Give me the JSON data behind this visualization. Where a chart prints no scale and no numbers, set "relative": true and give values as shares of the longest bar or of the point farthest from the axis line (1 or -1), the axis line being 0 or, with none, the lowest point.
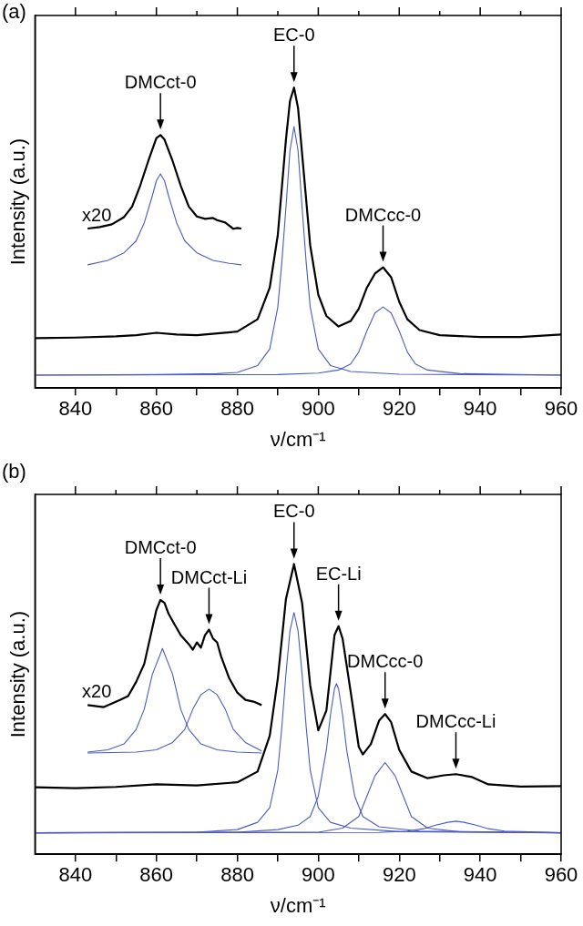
{
  "chart_data": [
    {
      "type": "line",
      "title": "(a)",
      "xlabel": "ν/cm⁻¹",
      "ylabel": "Intensity (a.u.)",
      "relative": true,
      "xlim": [
        830,
        960
      ],
      "xticks": [
        840,
        {
          "value": 850,
          "label": null
        },
        860,
        {
          "value": 870,
          "label": null
        },
        880,
        {
          "value": 890,
          "label": null
        },
        900,
        {
          "value": 910,
          "label": null
        },
        920,
        {
          "value": 930,
          "label": null
        },
        940,
        {
          "value": 950,
          "label": null
        },
        960
      ],
      "grid": false,
      "legend": false,
      "marker": "none",
      "line_style": "solid",
      "series": [
        {
          "color": "#000000",
          "x": [
            830,
            840,
            850,
            855,
            860,
            865,
            870,
            880,
            885,
            888,
            890,
            892,
            893,
            894,
            895,
            896,
            898,
            900,
            902,
            905,
            908,
            910,
            912,
            914,
            916,
            918,
            920,
            922,
            925,
            930,
            940,
            950,
            960
          ],
          "values": [
            0.166,
            0.168,
            0.172,
            0.176,
            0.184,
            0.178,
            0.176,
            0.188,
            0.229,
            0.334,
            0.51,
            0.826,
            0.955,
            1,
            0.932,
            0.78,
            0.475,
            0.311,
            0.24,
            0.205,
            0.223,
            0.264,
            0.334,
            0.381,
            0.402,
            0.369,
            0.287,
            0.229,
            0.193,
            0.176,
            0.17,
            0.17,
            0.178
          ]
        },
        {
          "color": "#4a5bc4",
          "x": [
            830,
            860,
            875,
            880,
            885,
            888,
            890,
            891,
            892,
            893,
            894,
            895,
            896,
            897,
            898,
            900,
            903,
            908,
            920,
            960
          ],
          "values": [
            0.043,
            0.045,
            0.048,
            0.052,
            0.075,
            0.13,
            0.27,
            0.42,
            0.6,
            0.79,
            0.87,
            0.79,
            0.6,
            0.42,
            0.27,
            0.13,
            0.075,
            0.055,
            0.046,
            0.043
          ]
        },
        {
          "color": "#4a5bc4",
          "x": [
            830,
            890,
            900,
            905,
            908,
            910,
            912,
            914,
            916,
            918,
            920,
            922,
            924,
            927,
            935,
            960
          ],
          "values": [
            0.043,
            0.045,
            0.05,
            0.06,
            0.08,
            0.12,
            0.19,
            0.25,
            0.27,
            0.25,
            0.19,
            0.12,
            0.08,
            0.06,
            0.048,
            0.043
          ]
        },
        {
          "color": "#000000",
          "x": [
            843,
            846,
            849,
            852,
            854,
            856,
            858,
            860,
            861,
            862,
            864,
            866,
            868,
            870,
            872,
            874,
            875,
            877,
            879,
            880,
            881
          ],
          "values": [
            0.531,
            0.536,
            0.545,
            0.569,
            0.604,
            0.674,
            0.756,
            0.832,
            0.842,
            0.827,
            0.756,
            0.674,
            0.604,
            0.571,
            0.563,
            0.566,
            0.559,
            0.551,
            0.53,
            0.533,
            0.531
          ]
        },
        {
          "color": "#4a5bc4",
          "x": [
            843,
            848,
            852,
            855,
            857,
            859,
            860,
            861,
            862,
            863,
            865,
            867,
            870,
            874,
            878,
            881
          ],
          "values": [
            0.41,
            0.425,
            0.45,
            0.49,
            0.55,
            0.64,
            0.69,
            0.713,
            0.69,
            0.64,
            0.55,
            0.49,
            0.45,
            0.425,
            0.415,
            0.41
          ]
        }
      ],
      "annotations": [
        {
          "text": "DMCct-0",
          "x": 861,
          "y": 0.842
        },
        {
          "text": "EC-0",
          "x": 894,
          "y": 1
        },
        {
          "text": "DMCcc-0",
          "x": 916,
          "y": 0.402
        },
        "x20"
      ]
    },
    {
      "type": "line",
      "title": "(b)",
      "xlabel": "ν/cm⁻¹",
      "ylabel": "Intensity (a.u.)",
      "relative": true,
      "xlim": [
        830,
        960
      ],
      "xticks": [
        840,
        {
          "value": 850,
          "label": null
        },
        860,
        {
          "value": 870,
          "label": null
        },
        880,
        {
          "value": 890,
          "label": null
        },
        900,
        {
          "value": 910,
          "label": null
        },
        920,
        {
          "value": 930,
          "label": null
        },
        940,
        {
          "value": 950,
          "label": null
        },
        960
      ],
      "grid": false,
      "legend": false,
      "marker": "none",
      "line_style": "solid",
      "series": [
        {
          "color": "#000000",
          "x": [
            830,
            840,
            850,
            860,
            870,
            880,
            885,
            888,
            890,
            892,
            894,
            896,
            898,
            900,
            902,
            904,
            905,
            906,
            908,
            910,
            911,
            913,
            915,
            916.5,
            918,
            920,
            923,
            927,
            931,
            934,
            938,
            942,
            950,
            960
          ],
          "values": [
            0.231,
            0.228,
            0.232,
            0.241,
            0.237,
            0.248,
            0.285,
            0.408,
            0.606,
            0.879,
            1,
            0.866,
            0.582,
            0.427,
            0.495,
            0.755,
            0.786,
            0.743,
            0.56,
            0.37,
            0.344,
            0.38,
            0.46,
            0.483,
            0.455,
            0.36,
            0.285,
            0.262,
            0.272,
            0.276,
            0.266,
            0.241,
            0.233,
            0.235
          ]
        },
        {
          "color": "#4a5bc4",
          "x": [
            830,
            870,
            880,
            885,
            888,
            890,
            891,
            892,
            893,
            894,
            895,
            896,
            897,
            898,
            900,
            903,
            908,
            920,
            960
          ],
          "values": [
            0.074,
            0.076,
            0.085,
            0.11,
            0.16,
            0.29,
            0.44,
            0.62,
            0.77,
            0.833,
            0.77,
            0.62,
            0.44,
            0.29,
            0.16,
            0.11,
            0.09,
            0.078,
            0.074
          ]
        },
        {
          "color": "#4a5bc4",
          "x": [
            830,
            880,
            890,
            895,
            898,
            900,
            902,
            903,
            904,
            904.5,
            905,
            906,
            907,
            909,
            911,
            915,
            925,
            960
          ],
          "values": [
            0.074,
            0.076,
            0.085,
            0.1,
            0.13,
            0.2,
            0.36,
            0.48,
            0.57,
            0.588,
            0.57,
            0.48,
            0.36,
            0.2,
            0.13,
            0.095,
            0.08,
            0.074
          ]
        },
        {
          "color": "#4a5bc4",
          "x": [
            830,
            900,
            906,
            910,
            912,
            914,
            916.5,
            919,
            921,
            923,
            927,
            935,
            960
          ],
          "values": [
            0.074,
            0.076,
            0.09,
            0.13,
            0.2,
            0.27,
            0.316,
            0.27,
            0.2,
            0.13,
            0.09,
            0.077,
            0.074
          ]
        },
        {
          "color": "#4a5bc4",
          "x": [
            830,
            915,
            922,
            926,
            929,
            932,
            934,
            936,
            939,
            942,
            946,
            960
          ],
          "values": [
            0.074,
            0.075,
            0.08,
            0.088,
            0.1,
            0.11,
            0.114,
            0.11,
            0.1,
            0.088,
            0.08,
            0.074
          ]
        },
        {
          "color": "#000000",
          "x": [
            843,
            847,
            851,
            853,
            855,
            857,
            859,
            860,
            861,
            862,
            863,
            864,
            866,
            868,
            869,
            870,
            871,
            872,
            873,
            874,
            875,
            876,
            878,
            880,
            882,
            884,
            886
          ],
          "values": [
            0.514,
            0.507,
            0.532,
            0.545,
            0.594,
            0.656,
            0.78,
            0.842,
            0.876,
            0.866,
            0.829,
            0.804,
            0.755,
            0.724,
            0.705,
            0.73,
            0.712,
            0.755,
            0.774,
            0.743,
            0.73,
            0.681,
            0.606,
            0.557,
            0.532,
            0.526,
            0.514
          ]
        },
        {
          "color": "#4a5bc4",
          "x": [
            843,
            848,
            852,
            855,
            857,
            859,
            861.5,
            864,
            866,
            868,
            871,
            875,
            880,
            886
          ],
          "values": [
            0.352,
            0.36,
            0.38,
            0.43,
            0.5,
            0.62,
            0.709,
            0.62,
            0.5,
            0.43,
            0.38,
            0.36,
            0.352,
            0.349
          ]
        },
        {
          "color": "#4a5bc4",
          "x": [
            843,
            855,
            860,
            864,
            867,
            869,
            871,
            873,
            875,
            877,
            879,
            882,
            886
          ],
          "values": [
            0.349,
            0.352,
            0.36,
            0.385,
            0.43,
            0.5,
            0.55,
            0.569,
            0.55,
            0.5,
            0.43,
            0.385,
            0.356
          ]
        }
      ],
      "annotations": [
        {
          "text": "DMCct-0",
          "x": 861,
          "y": 0.876
        },
        {
          "text": "DMCct-Li",
          "x": 873,
          "y": 0.774
        },
        {
          "text": "EC-0",
          "x": 894,
          "y": 1
        },
        {
          "text": "EC-Li",
          "x": 905,
          "y": 0.786
        },
        {
          "text": "DMCcc-0",
          "x": 916.5,
          "y": 0.483
        },
        {
          "text": "DMCcc-Li",
          "x": 934,
          "y": 0.276
        },
        "x20"
      ]
    }
  ]
}
